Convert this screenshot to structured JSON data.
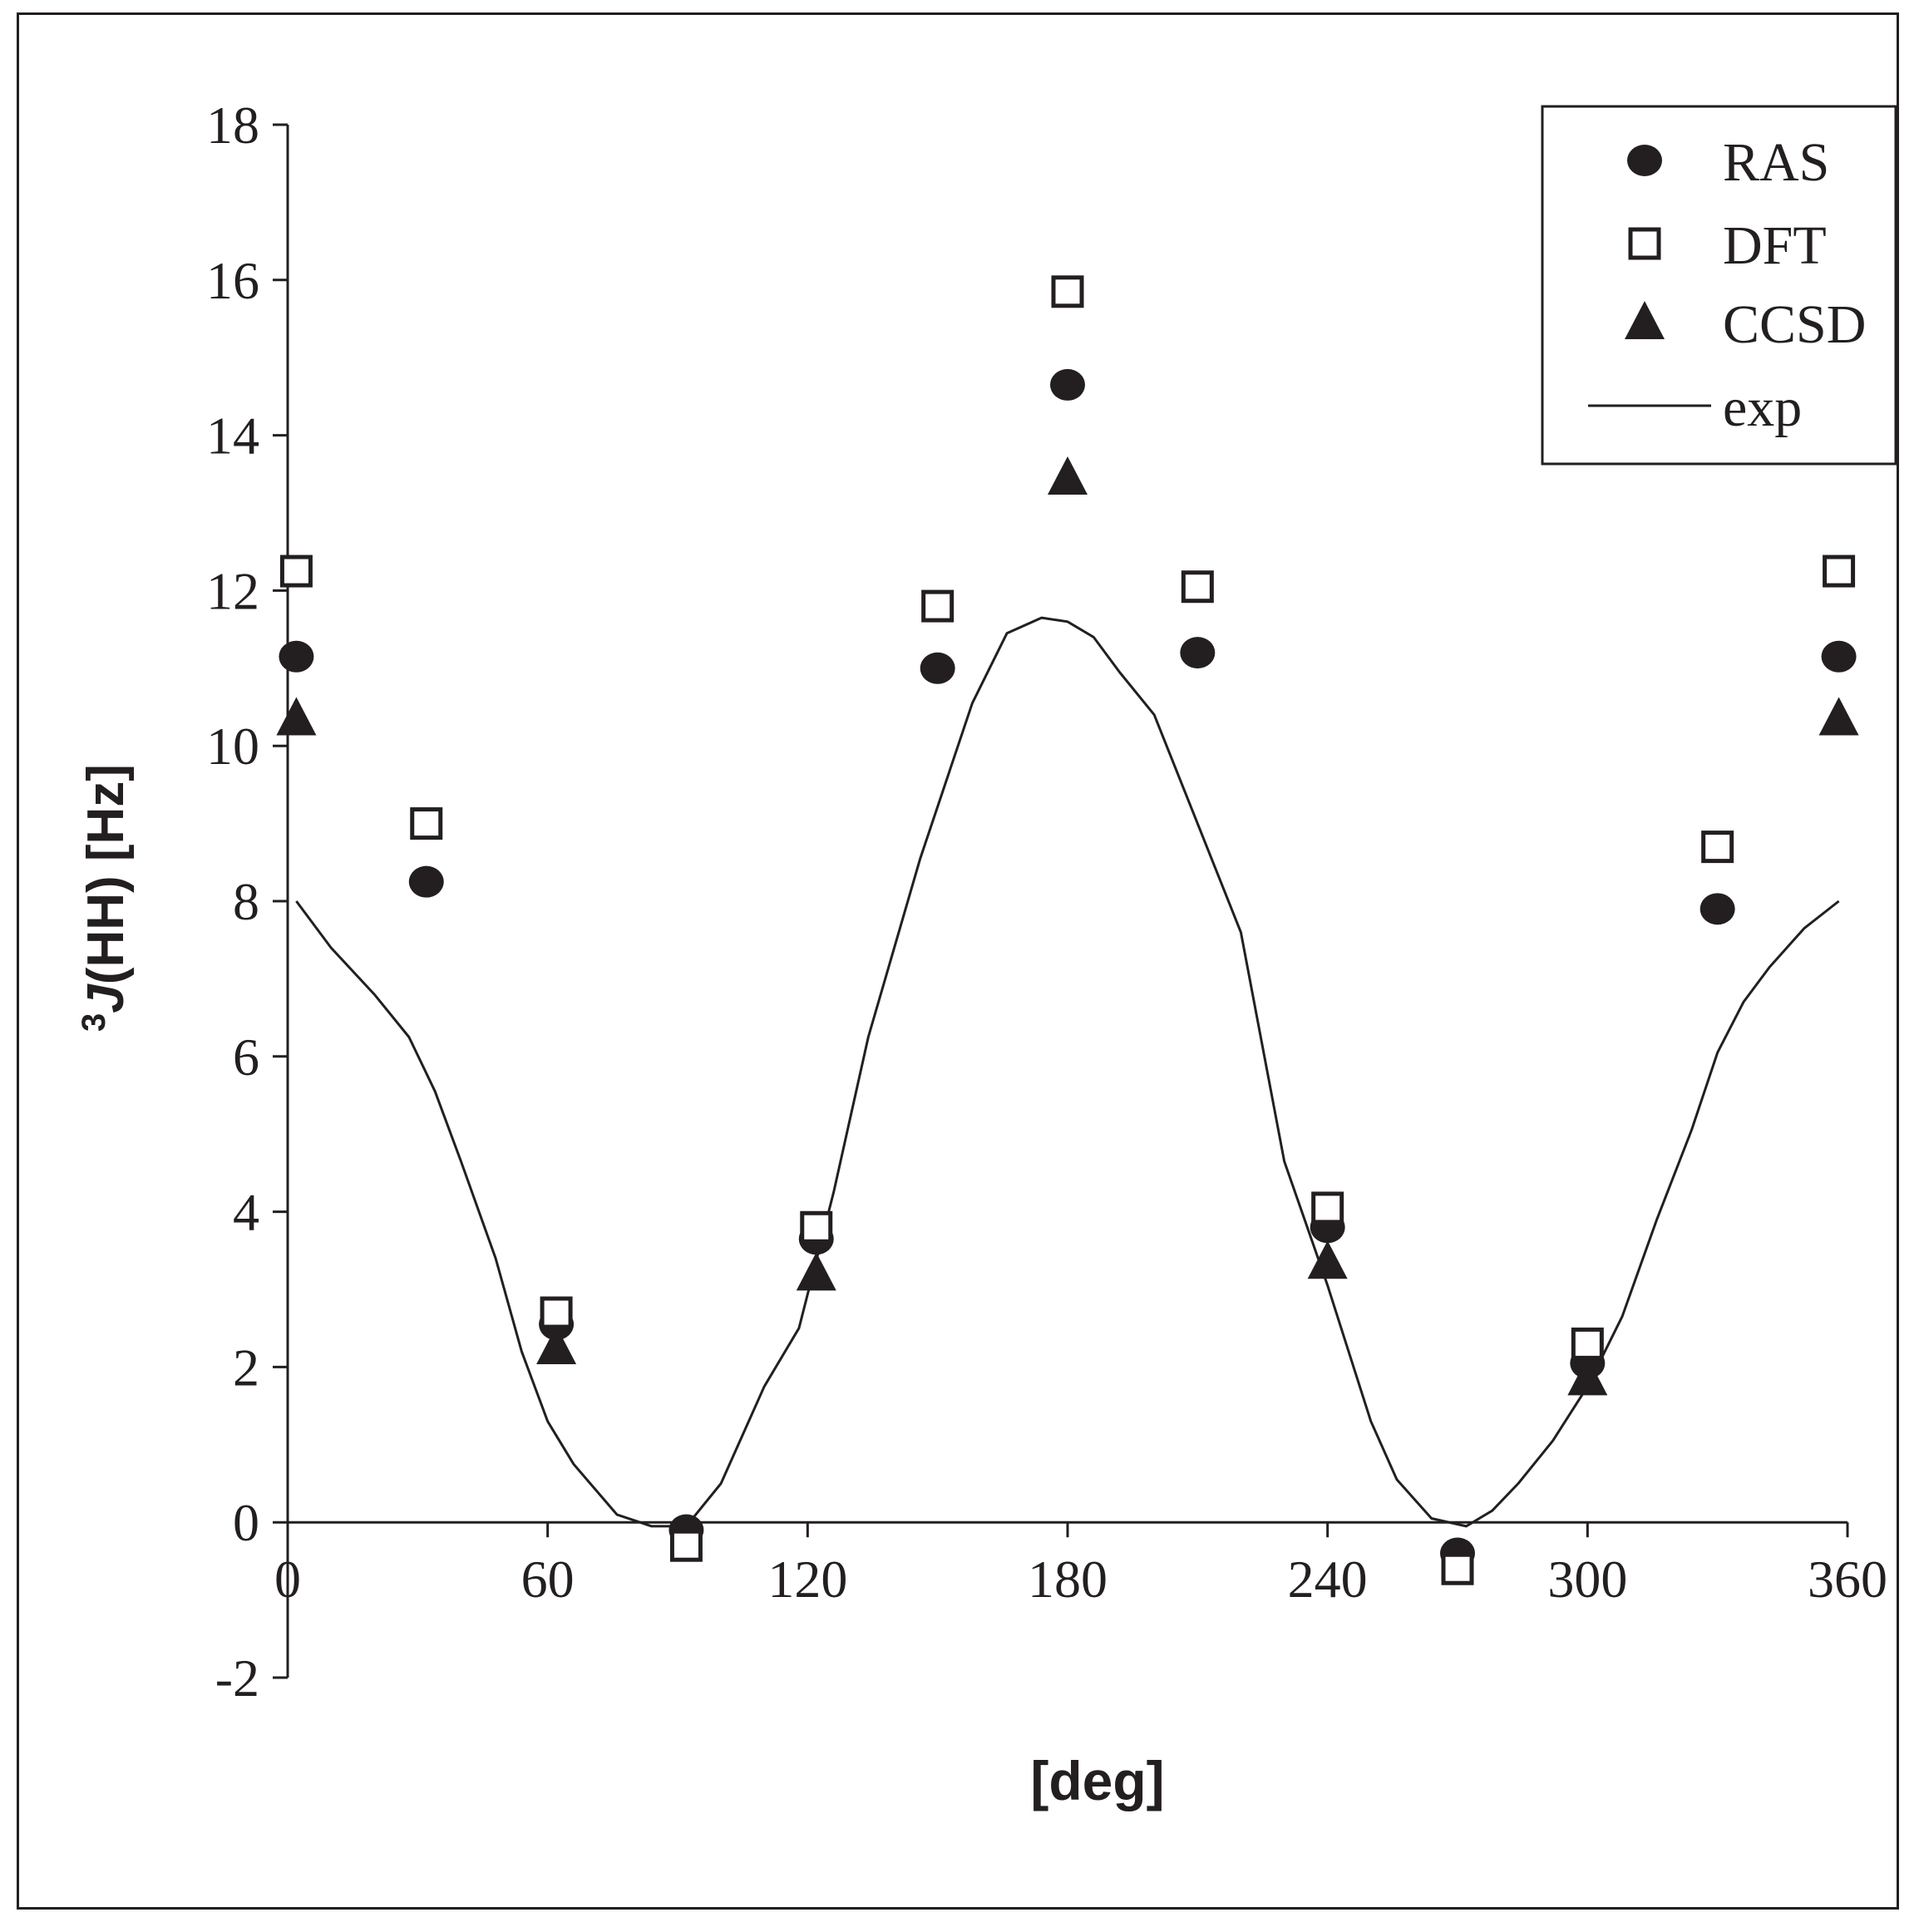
{
  "chart_data": {
    "type": "scatter",
    "title": "",
    "xlabel": "[deg]",
    "ylabel_superscript": "3",
    "ylabel_italic": "J",
    "ylabel_rest": "(HH) [Hz]",
    "xlim": [
      0,
      360
    ],
    "ylim": [
      -2,
      18
    ],
    "x_ticks": [
      0,
      60,
      120,
      180,
      240,
      300,
      360
    ],
    "x_tick_labels": [
      "0",
      "60",
      "120",
      "180",
      "240",
      "300",
      "360"
    ],
    "y_ticks": [
      -2,
      0,
      2,
      4,
      6,
      8,
      10,
      12,
      14,
      16,
      18
    ],
    "y_tick_labels": [
      "-2",
      "0",
      "2",
      "4",
      "6",
      "8",
      "10",
      "12",
      "14",
      "16",
      "18"
    ],
    "grid": false,
    "legend_position": "top-right",
    "series": [
      {
        "name": "RAS",
        "marker": "filled-circle",
        "x": [
          2,
          32,
          62,
          92,
          122,
          150,
          180,
          210,
          240,
          270,
          300,
          330,
          358
        ],
        "y": [
          11.15,
          8.25,
          2.55,
          -0.1,
          3.65,
          11.0,
          14.65,
          11.2,
          3.8,
          -0.4,
          2.05,
          7.9,
          11.15
        ]
      },
      {
        "name": "DFT",
        "marker": "open-square",
        "x": [
          2,
          32,
          62,
          92,
          122,
          150,
          180,
          210,
          240,
          270,
          300,
          330,
          358
        ],
        "y": [
          12.25,
          9.0,
          2.7,
          -0.3,
          3.8,
          11.8,
          15.85,
          12.05,
          4.05,
          -0.6,
          2.3,
          8.7,
          12.25
        ]
      },
      {
        "name": "CCSD",
        "marker": "filled-triangle",
        "x": [
          2,
          62,
          122,
          180,
          240,
          300,
          358
        ],
        "y": [
          10.35,
          2.25,
          3.2,
          13.45,
          3.35,
          1.85,
          10.35
        ]
      },
      {
        "name": "exp",
        "marker": "line",
        "x": [
          2,
          10,
          20,
          28,
          34,
          40,
          48,
          54,
          60,
          66,
          76,
          84,
          92,
          100,
          110,
          118,
          126,
          134,
          146,
          158,
          166,
          174,
          180,
          186,
          192,
          200,
          210,
          220,
          230,
          240,
          250,
          256,
          264,
          272,
          278,
          284,
          292,
          300,
          308,
          316,
          324,
          330,
          336,
          342,
          350,
          358
        ],
        "y": [
          8.0,
          7.4,
          6.8,
          6.25,
          5.55,
          4.65,
          3.4,
          2.2,
          1.3,
          0.75,
          0.1,
          -0.05,
          -0.05,
          0.5,
          1.75,
          2.5,
          4.25,
          6.25,
          8.55,
          10.55,
          11.45,
          11.65,
          11.6,
          11.4,
          10.95,
          10.4,
          9.0,
          7.6,
          4.65,
          3.05,
          1.3,
          0.55,
          0.05,
          -0.05,
          0.15,
          0.5,
          1.05,
          1.75,
          2.65,
          3.9,
          5.05,
          6.05,
          6.7,
          7.15,
          7.65,
          8.0
        ]
      }
    ]
  }
}
